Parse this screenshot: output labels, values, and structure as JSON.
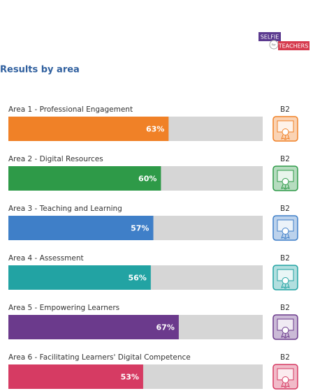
{
  "logo": {
    "top": "SELFIE",
    "middle": "for",
    "bottom": "TEACHERS"
  },
  "chart_data": {
    "type": "bar",
    "orientation": "horizontal",
    "title": "Results by area",
    "categories": [
      "Area 1 - Professional Engagement",
      "Area 2 - Digital Resources",
      "Area 3 - Teaching and Learning",
      "Area 4 - Assessment",
      "Area 5 - Empowering Learners",
      "Area 6 - Facilitating Learners' Digital Competence"
    ],
    "values": [
      63,
      60,
      57,
      56,
      67,
      53
    ],
    "value_labels": [
      "63%",
      "60%",
      "57%",
      "56%",
      "67%",
      "53%"
    ],
    "levels": [
      "B2",
      "B2",
      "B2",
      "B2",
      "B2",
      "B2"
    ],
    "colors": [
      "#f08127",
      "#2e9a48",
      "#3f7fc8",
      "#22a3a3",
      "#6b3a8c",
      "#d63b63"
    ],
    "xlim": [
      0,
      100
    ]
  }
}
